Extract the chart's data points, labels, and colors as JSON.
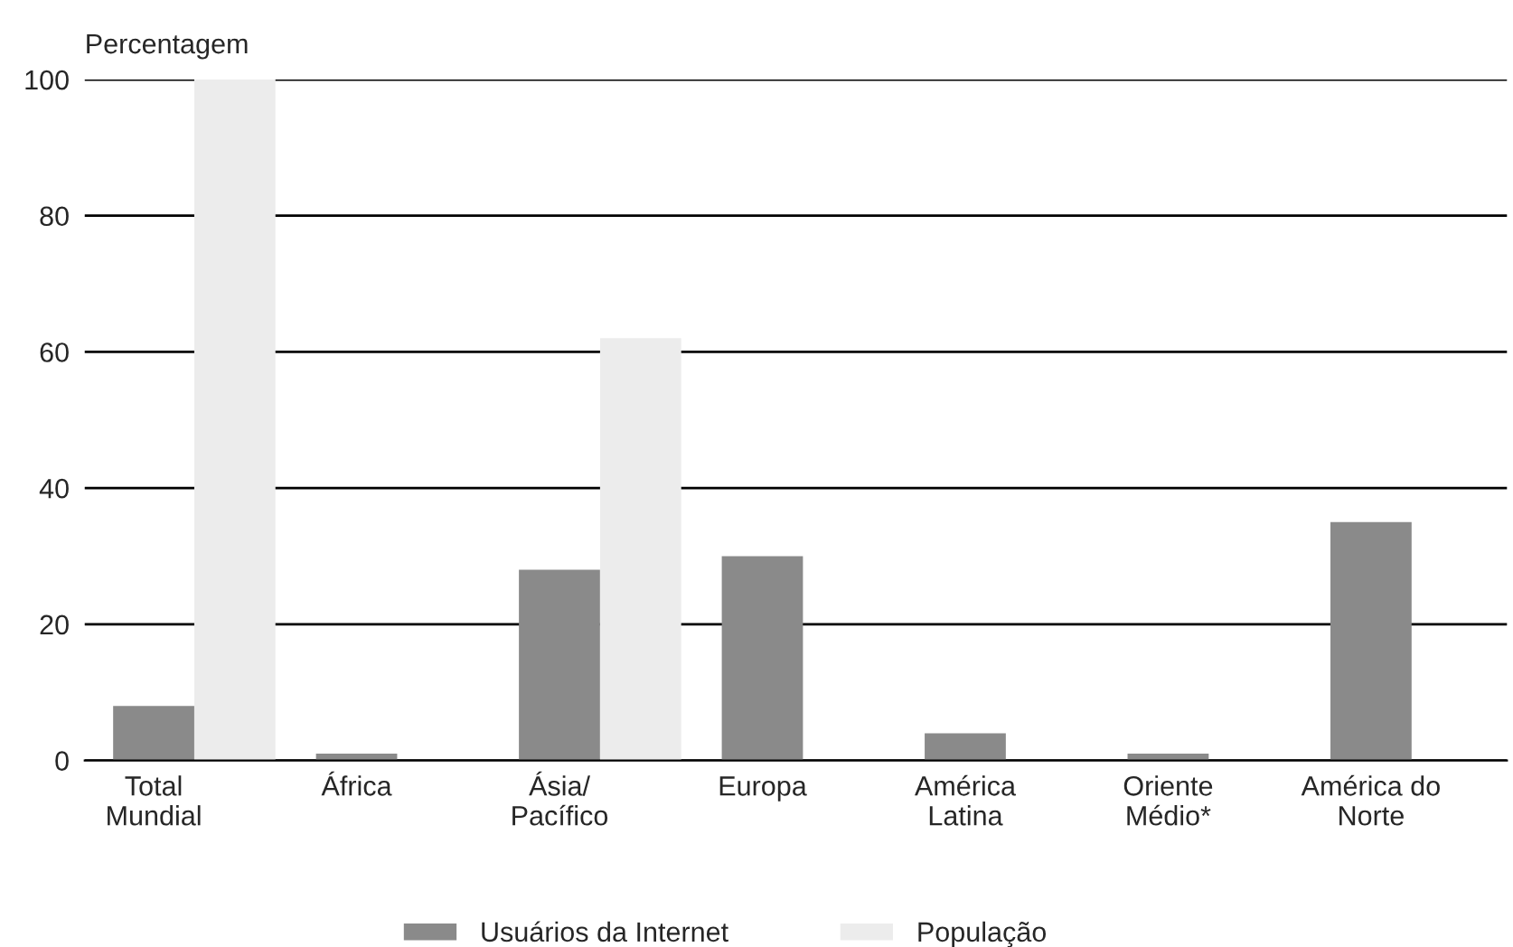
{
  "chart_data": {
    "type": "bar",
    "ylabel": "Percentagem",
    "categories": [
      "Total\nMundial",
      "África",
      "Ásia/\nPacífico",
      "Europa",
      "América\nLatina",
      "Oriente\nMédio*",
      "América do\nNorte"
    ],
    "series": [
      {
        "name": "Usuários da Internet",
        "color": "#8a8a8a",
        "values": [
          8,
          1,
          28,
          30,
          4,
          1,
          35
        ]
      },
      {
        "name": "População",
        "color": "#ececec",
        "values": [
          100,
          null,
          62,
          null,
          null,
          null,
          null
        ]
      }
    ],
    "ylim": [
      0,
      100
    ],
    "yticks": [
      0,
      20,
      40,
      60,
      80,
      100
    ],
    "grid": "y",
    "legend": "bottom"
  }
}
